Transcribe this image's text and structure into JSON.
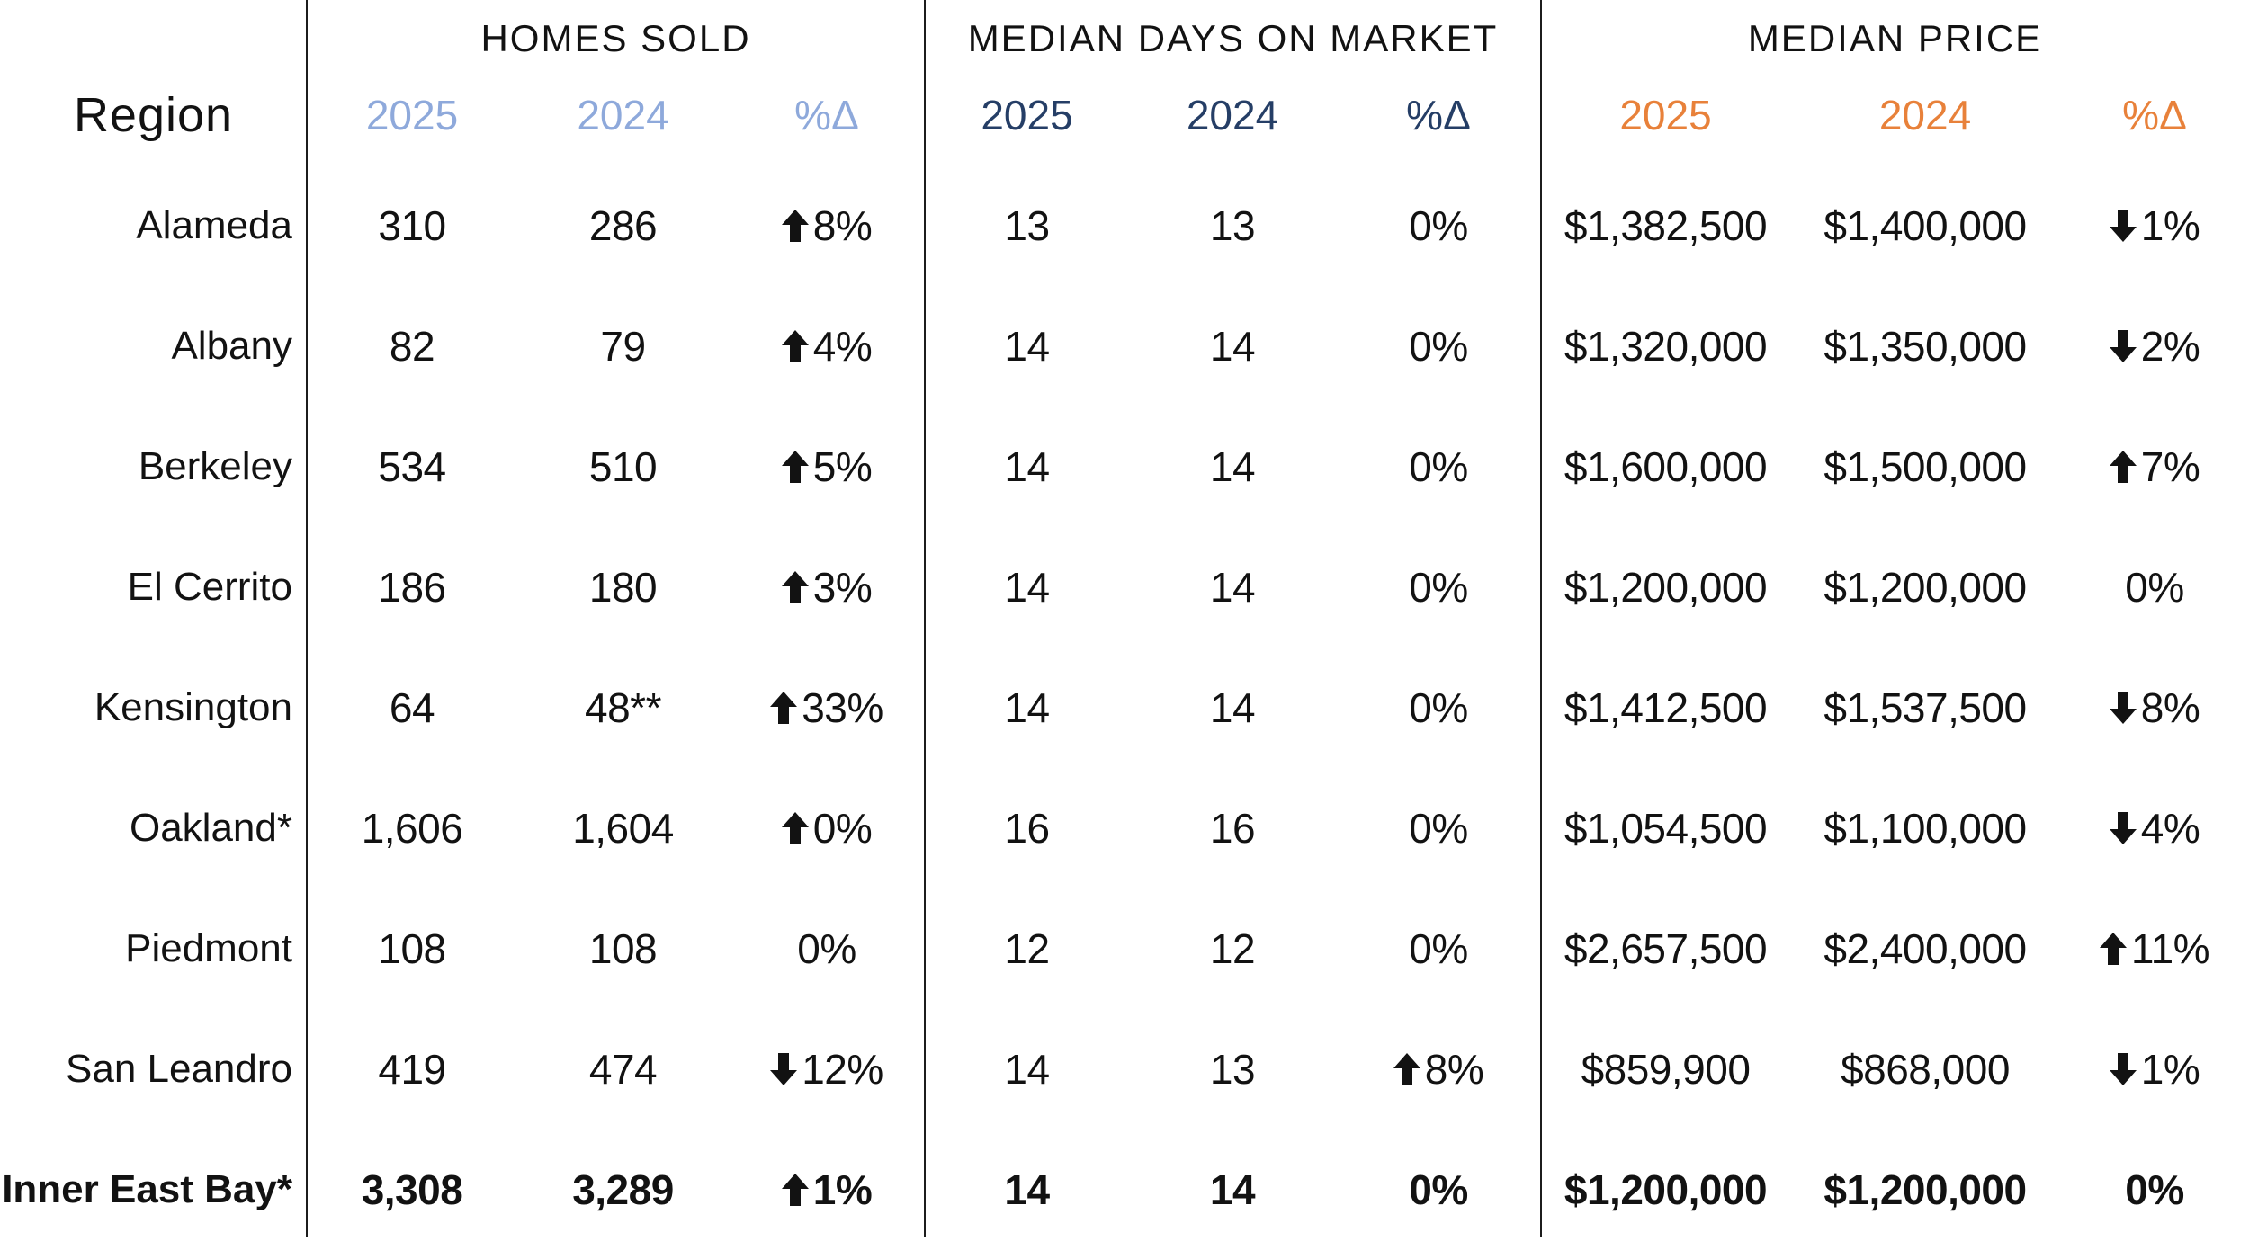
{
  "page": {
    "background": "#ffffff",
    "divider_color": "#1c1c1c",
    "text_color": "#121212"
  },
  "header": {
    "region_label": "Region",
    "groups": [
      {
        "title": "HOMES SOLD",
        "accent_color": "#8EA9DB",
        "headers": [
          "2025",
          "2024",
          "%Δ"
        ]
      },
      {
        "title": "MEDIAN DAYS ON MARKET",
        "accent_color": "#253E66",
        "headers": [
          "2025",
          "2024",
          "%Δ"
        ]
      },
      {
        "title": "MEDIAN PRICE",
        "accent_color": "#E8813A",
        "headers": [
          "2025",
          "2024",
          "%Δ"
        ]
      }
    ]
  },
  "rows": [
    {
      "region": "Alameda",
      "bold": false,
      "cells": [
        {
          "v": "310"
        },
        {
          "v": "286"
        },
        {
          "arrow": "up",
          "v": "8%"
        },
        {
          "v": "13"
        },
        {
          "v": "13"
        },
        {
          "v": "0%"
        },
        {
          "v": "$1,382,500"
        },
        {
          "v": "$1,400,000"
        },
        {
          "arrow": "down",
          "v": "1%"
        }
      ]
    },
    {
      "region": "Albany",
      "bold": false,
      "cells": [
        {
          "v": "82"
        },
        {
          "v": "79"
        },
        {
          "arrow": "up",
          "v": "4%"
        },
        {
          "v": "14"
        },
        {
          "v": "14"
        },
        {
          "v": "0%"
        },
        {
          "v": "$1,320,000"
        },
        {
          "v": "$1,350,000"
        },
        {
          "arrow": "down",
          "v": "2%"
        }
      ]
    },
    {
      "region": "Berkeley",
      "bold": false,
      "cells": [
        {
          "v": "534"
        },
        {
          "v": "510"
        },
        {
          "arrow": "up",
          "v": "5%"
        },
        {
          "v": "14"
        },
        {
          "v": "14"
        },
        {
          "v": "0%"
        },
        {
          "v": "$1,600,000"
        },
        {
          "v": "$1,500,000"
        },
        {
          "arrow": "up",
          "v": "7%"
        }
      ]
    },
    {
      "region": "El Cerrito",
      "bold": false,
      "cells": [
        {
          "v": "186"
        },
        {
          "v": "180"
        },
        {
          "arrow": "up",
          "v": "3%"
        },
        {
          "v": "14"
        },
        {
          "v": "14"
        },
        {
          "v": "0%"
        },
        {
          "v": "$1,200,000"
        },
        {
          "v": "$1,200,000"
        },
        {
          "v": "0%"
        }
      ]
    },
    {
      "region": "Kensington",
      "bold": false,
      "cells": [
        {
          "v": "64"
        },
        {
          "v": "48**"
        },
        {
          "arrow": "up",
          "v": "33%"
        },
        {
          "v": "14"
        },
        {
          "v": "14"
        },
        {
          "v": "0%"
        },
        {
          "v": "$1,412,500"
        },
        {
          "v": "$1,537,500"
        },
        {
          "arrow": "down",
          "v": "8%"
        }
      ]
    },
    {
      "region": "Oakland*",
      "bold": false,
      "cells": [
        {
          "v": "1,606"
        },
        {
          "v": "1,604"
        },
        {
          "arrow": "up",
          "v": "0%"
        },
        {
          "v": "16"
        },
        {
          "v": "16"
        },
        {
          "v": "0%"
        },
        {
          "v": "$1,054,500"
        },
        {
          "v": "$1,100,000"
        },
        {
          "arrow": "down",
          "v": "4%"
        }
      ]
    },
    {
      "region": "Piedmont",
      "bold": false,
      "cells": [
        {
          "v": "108"
        },
        {
          "v": "108"
        },
        {
          "v": "0%"
        },
        {
          "v": "12"
        },
        {
          "v": "12"
        },
        {
          "v": "0%"
        },
        {
          "v": "$2,657,500"
        },
        {
          "v": "$2,400,000"
        },
        {
          "arrow": "up",
          "v": "11%"
        }
      ]
    },
    {
      "region": "San Leandro",
      "bold": false,
      "cells": [
        {
          "v": "419"
        },
        {
          "v": "474"
        },
        {
          "arrow": "down",
          "v": "12%"
        },
        {
          "v": "14"
        },
        {
          "v": "13"
        },
        {
          "arrow": "up",
          "v": "8%"
        },
        {
          "v": "$859,900"
        },
        {
          "v": "$868,000"
        },
        {
          "arrow": "down",
          "v": "1%"
        }
      ]
    },
    {
      "region": "Inner East Bay*",
      "bold": true,
      "cells": [
        {
          "v": "3,308"
        },
        {
          "v": "3,289"
        },
        {
          "arrow": "up",
          "v": "1%"
        },
        {
          "v": "14"
        },
        {
          "v": "14"
        },
        {
          "v": "0%"
        },
        {
          "v": "$1,200,000"
        },
        {
          "v": "$1,200,000"
        },
        {
          "v": "0%"
        }
      ]
    }
  ],
  "chart_data": {
    "type": "table",
    "title": "",
    "column_groups": [
      {
        "name": "HOMES SOLD",
        "columns": [
          "2025",
          "2024",
          "%Δ"
        ]
      },
      {
        "name": "MEDIAN DAYS ON MARKET",
        "columns": [
          "2025",
          "2024",
          "%Δ"
        ]
      },
      {
        "name": "MEDIAN PRICE",
        "columns": [
          "2025",
          "2024",
          "%Δ"
        ]
      }
    ],
    "regions": [
      "Alameda",
      "Albany",
      "Berkeley",
      "El Cerrito",
      "Kensington",
      "Oakland*",
      "Piedmont",
      "San Leandro",
      "Inner East Bay*"
    ],
    "homes_sold": {
      "y2025": [
        310,
        82,
        534,
        186,
        64,
        1606,
        108,
        419,
        3308
      ],
      "y2024_labels": [
        "286",
        "79",
        "510",
        "180",
        "48**",
        "1,604",
        "108",
        "474",
        "3,289"
      ],
      "pct_change": [
        "+8%",
        "+4%",
        "+5%",
        "+3%",
        "+33%",
        "+0%",
        "0%",
        "-12%",
        "+1%"
      ]
    },
    "median_days_on_market": {
      "y2025": [
        13,
        14,
        14,
        14,
        14,
        16,
        12,
        14,
        14
      ],
      "y2024": [
        13,
        14,
        14,
        14,
        14,
        16,
        12,
        13,
        14
      ],
      "pct_change": [
        "0%",
        "0%",
        "0%",
        "0%",
        "0%",
        "0%",
        "0%",
        "+8%",
        "0%"
      ]
    },
    "median_price": {
      "y2025": [
        1382500,
        1320000,
        1600000,
        1200000,
        1412500,
        1054500,
        2657500,
        859900,
        1200000
      ],
      "y2024": [
        1400000,
        1350000,
        1500000,
        1200000,
        1537500,
        1100000,
        2400000,
        868000,
        1200000
      ],
      "pct_change": [
        "-1%",
        "-2%",
        "+7%",
        "0%",
        "-8%",
        "-4%",
        "+11%",
        "-1%",
        "0%"
      ]
    }
  }
}
